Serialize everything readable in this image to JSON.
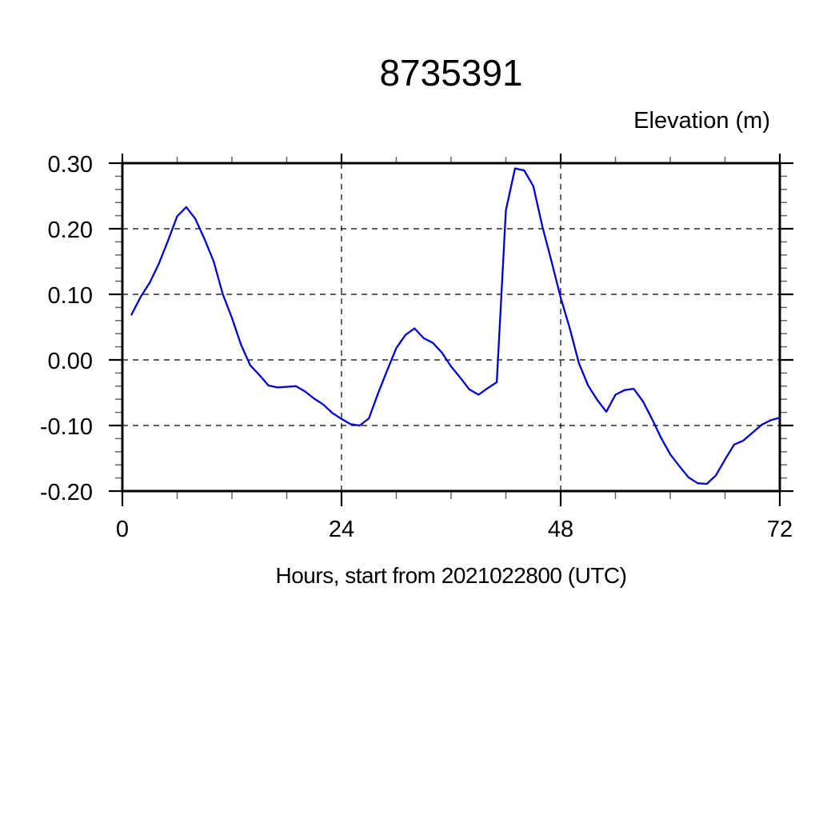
{
  "page": {
    "background": "#ffffff"
  },
  "chart_data": {
    "type": "line",
    "title": "8735391",
    "xlabel": "Hours, start from 2021022800 (UTC)",
    "ylabel": "Elevation (m)",
    "xlim": [
      0,
      72
    ],
    "ylim": [
      -0.2,
      0.3
    ],
    "xticks": {
      "values": [
        0,
        24,
        48,
        72
      ],
      "labels": [
        "0",
        "24",
        "48",
        "72"
      ],
      "minor_step": 6
    },
    "yticks": {
      "values": [
        0.3,
        0.2,
        0.1,
        0.0,
        -0.1,
        -0.2
      ],
      "labels": [
        "0.30",
        "0.20",
        "0.10",
        "0.00",
        "-0.10",
        "-0.20"
      ],
      "minor_step": 0.02
    },
    "grid": {
      "style": "dashed",
      "x_gridlines": [
        24,
        48
      ],
      "y_gridlines": [
        0.3,
        0.2,
        0.1,
        0.0,
        -0.1,
        -0.2
      ]
    },
    "legend": "none",
    "line_color": "#0000d5",
    "series": [
      {
        "name": "elevation_m",
        "x": [
          1,
          2,
          3,
          4,
          5,
          6,
          7,
          8,
          9,
          10,
          11,
          12,
          13,
          14,
          15,
          16,
          17,
          18,
          19,
          20,
          21,
          22,
          23,
          24,
          25,
          26,
          27,
          28,
          29,
          30,
          31,
          32,
          33,
          34,
          35,
          36,
          37,
          38,
          39,
          40,
          41,
          42,
          43,
          44,
          45,
          46,
          47,
          48,
          49,
          50,
          51,
          52,
          53,
          54,
          55,
          56,
          57,
          58,
          59,
          60,
          61,
          62,
          63,
          64,
          65,
          66,
          67,
          68,
          69,
          70,
          71,
          72
        ],
        "values": [
          0.069,
          0.096,
          0.118,
          0.147,
          0.182,
          0.219,
          0.233,
          0.215,
          0.184,
          0.15,
          0.1,
          0.064,
          0.023,
          -0.008,
          -0.023,
          -0.039,
          -0.042,
          -0.041,
          -0.04,
          -0.048,
          -0.059,
          -0.068,
          -0.081,
          -0.09,
          -0.098,
          -0.1,
          -0.089,
          -0.051,
          -0.016,
          0.018,
          0.038,
          0.048,
          0.033,
          0.026,
          0.011,
          -0.01,
          -0.027,
          -0.045,
          -0.053,
          -0.043,
          -0.034,
          0.228,
          0.292,
          0.289,
          0.265,
          0.203,
          0.15,
          0.095,
          0.048,
          -0.005,
          -0.039,
          -0.061,
          -0.079,
          -0.053,
          -0.046,
          -0.044,
          -0.063,
          -0.09,
          -0.119,
          -0.144,
          -0.162,
          -0.179,
          -0.188,
          -0.189,
          -0.176,
          -0.152,
          -0.129,
          -0.123,
          -0.111,
          -0.099,
          -0.092,
          -0.088
        ]
      }
    ]
  }
}
